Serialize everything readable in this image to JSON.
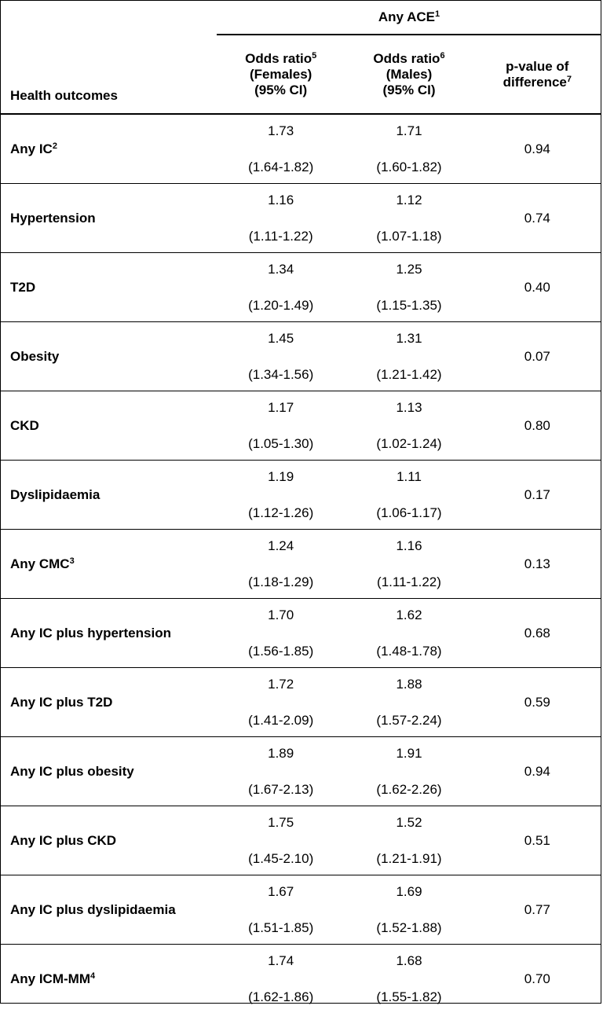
{
  "header": {
    "group_label": "Any ACE",
    "group_sup": "1",
    "col_outcome": "Health outcomes",
    "col_female_l1": "Odds ratio",
    "col_female_sup": "5",
    "col_female_l2": "(Females)",
    "col_female_l3": "(95% CI)",
    "col_male_l1": "Odds ratio",
    "col_male_sup": "6",
    "col_male_l2": "(Males)",
    "col_male_l3": "(95% CI)",
    "col_p_l1": "p-value of",
    "col_p_l2": "difference",
    "col_p_sup": "7"
  },
  "rows": [
    {
      "outcome": "Any IC",
      "sup": "2",
      "f_or": "1.73",
      "f_ci": "(1.64-1.82)",
      "m_or": "1.71",
      "m_ci": "(1.60-1.82)",
      "p": "0.94"
    },
    {
      "outcome": "Hypertension",
      "sup": "",
      "f_or": "1.16",
      "f_ci": "(1.11-1.22)",
      "m_or": "1.12",
      "m_ci": "(1.07-1.18)",
      "p": "0.74"
    },
    {
      "outcome": "T2D",
      "sup": "",
      "f_or": "1.34",
      "f_ci": "(1.20-1.49)",
      "m_or": "1.25",
      "m_ci": "(1.15-1.35)",
      "p": "0.40"
    },
    {
      "outcome": "Obesity",
      "sup": "",
      "f_or": "1.45",
      "f_ci": "(1.34-1.56)",
      "m_or": "1.31",
      "m_ci": "(1.21-1.42)",
      "p": "0.07"
    },
    {
      "outcome": "CKD",
      "sup": "",
      "f_or": "1.17",
      "f_ci": "(1.05-1.30)",
      "m_or": "1.13",
      "m_ci": "(1.02-1.24)",
      "p": "0.80"
    },
    {
      "outcome": "Dyslipidaemia",
      "sup": "",
      "f_or": "1.19",
      "f_ci": "(1.12-1.26)",
      "m_or": "1.11",
      "m_ci": "(1.06-1.17)",
      "p": "0.17"
    },
    {
      "outcome": "Any CMC",
      "sup": "3",
      "f_or": "1.24",
      "f_ci": "(1.18-1.29)",
      "m_or": "1.16",
      "m_ci": "(1.11-1.22)",
      "p": "0.13"
    },
    {
      "outcome": "Any IC plus hypertension",
      "sup": "",
      "f_or": "1.70",
      "f_ci": "(1.56-1.85)",
      "m_or": "1.62",
      "m_ci": "(1.48-1.78)",
      "p": "0.68"
    },
    {
      "outcome": "Any IC plus T2D",
      "sup": "",
      "f_or": "1.72",
      "f_ci": "(1.41-2.09)",
      "m_or": "1.88",
      "m_ci": "(1.57-2.24)",
      "p": "0.59"
    },
    {
      "outcome": "Any IC plus obesity",
      "sup": "",
      "f_or": "1.89",
      "f_ci": "(1.67-2.13)",
      "m_or": "1.91",
      "m_ci": "(1.62-2.26)",
      "p": "0.94"
    },
    {
      "outcome": "Any IC plus CKD",
      "sup": "",
      "f_or": "1.75",
      "f_ci": "(1.45-2.10)",
      "m_or": "1.52",
      "m_ci": "(1.21-1.91)",
      "p": "0.51"
    },
    {
      "outcome": "Any IC plus dyslipidaemia",
      "sup": "",
      "f_or": "1.67",
      "f_ci": "(1.51-1.85)",
      "m_or": "1.69",
      "m_ci": "(1.52-1.88)",
      "p": "0.77"
    },
    {
      "outcome": "Any ICM-MM",
      "sup": "4",
      "f_or": "1.74",
      "f_ci": "(1.62-1.86)",
      "m_or": "1.68",
      "m_ci": "(1.55-1.82)",
      "p": "0.70"
    }
  ]
}
